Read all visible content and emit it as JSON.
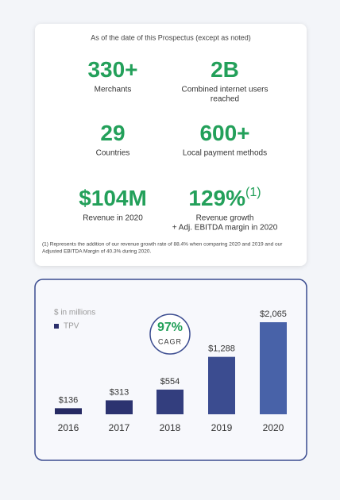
{
  "stats": {
    "header": "As of the date of this Prospectus (except as noted)",
    "items": [
      {
        "value": "330+",
        "label": [
          "Merchants"
        ]
      },
      {
        "value": "2B",
        "label": [
          "Combined internet users",
          "reached"
        ]
      },
      {
        "value": "29",
        "label": [
          "Countries"
        ]
      },
      {
        "value": "600+",
        "label": [
          "Local payment methods"
        ]
      },
      {
        "value": "$104M",
        "label": [
          "Revenue in 2020"
        ]
      },
      {
        "value": "129%",
        "superscript": "(1)",
        "label": [
          "Revenue growth",
          "+ Adj. EBITDA margin in 2020"
        ]
      }
    ],
    "footnote": [
      "(1) Represents the addition of our revenue growth rate of 88.4% when comparing 2020 and 2019 and our",
      "Adjusted EBITDA Margin of 40.3% during 2020."
    ]
  },
  "chart_data": {
    "type": "bar",
    "subtitle": "$ in millions",
    "categories": [
      "2016",
      "2017",
      "2018",
      "2019",
      "2020"
    ],
    "series": [
      {
        "name": "TPV",
        "color": "#2b2f6b",
        "colors": [
          "#262a63",
          "#2c3370",
          "#333e7e",
          "#3b4c90",
          "#4862a8"
        ],
        "values": [
          136,
          313,
          554,
          1288,
          2065
        ],
        "value_labels": [
          "$136",
          "$313",
          "$554",
          "$1,288",
          "$2,065"
        ]
      }
    ],
    "annotation": {
      "value": "97%",
      "label": "CAGR"
    }
  }
}
